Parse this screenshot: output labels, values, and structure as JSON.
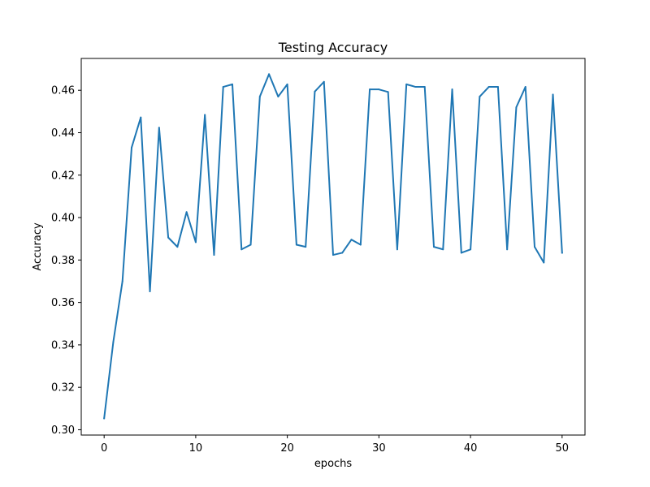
{
  "chart_data": {
    "type": "line",
    "title": "Testing Accuracy",
    "xlabel": "epochs",
    "ylabel": "Accuracy",
    "xlim": [
      -2.5,
      52.5
    ],
    "ylim": [
      0.2975,
      0.475
    ],
    "xticks": [
      0,
      10,
      20,
      30,
      40,
      50
    ],
    "xtick_labels": [
      "0",
      "10",
      "20",
      "30",
      "40",
      "50"
    ],
    "yticks": [
      0.3,
      0.32,
      0.34,
      0.36,
      0.38,
      0.4,
      0.42,
      0.44,
      0.46
    ],
    "ytick_labels": [
      "0.30",
      "0.32",
      "0.34",
      "0.36",
      "0.38",
      "0.40",
      "0.42",
      "0.44",
      "0.46"
    ],
    "grid": false,
    "legend": "none",
    "series": [
      {
        "color": "#1f77b4",
        "x": [
          0,
          1,
          2,
          3,
          4,
          5,
          6,
          7,
          8,
          9,
          10,
          11,
          12,
          13,
          14,
          15,
          16,
          17,
          18,
          19,
          20,
          21,
          22,
          23,
          24,
          25,
          26,
          27,
          28,
          29,
          30,
          31,
          32,
          33,
          34,
          35,
          36,
          37,
          38,
          39,
          40,
          41,
          42,
          43,
          44,
          45,
          46,
          47,
          48,
          49,
          50
        ],
        "values": [
          0.3054,
          0.3414,
          0.37,
          0.433,
          0.4472,
          0.3652,
          0.4424,
          0.3906,
          0.3862,
          0.4026,
          0.3884,
          0.4484,
          0.3824,
          0.4616,
          0.4628,
          0.385,
          0.3872,
          0.457,
          0.4676,
          0.457,
          0.4628,
          0.3872,
          0.3862,
          0.4594,
          0.464,
          0.3824,
          0.3834,
          0.3896,
          0.3872,
          0.4604,
          0.4604,
          0.4592,
          0.385,
          0.4628,
          0.4616,
          0.4616,
          0.3862,
          0.385,
          0.4604,
          0.3834,
          0.385,
          0.457,
          0.4616,
          0.4616,
          0.385,
          0.452,
          0.4616,
          0.3862,
          0.3788,
          0.458,
          0.3834
        ]
      }
    ]
  }
}
